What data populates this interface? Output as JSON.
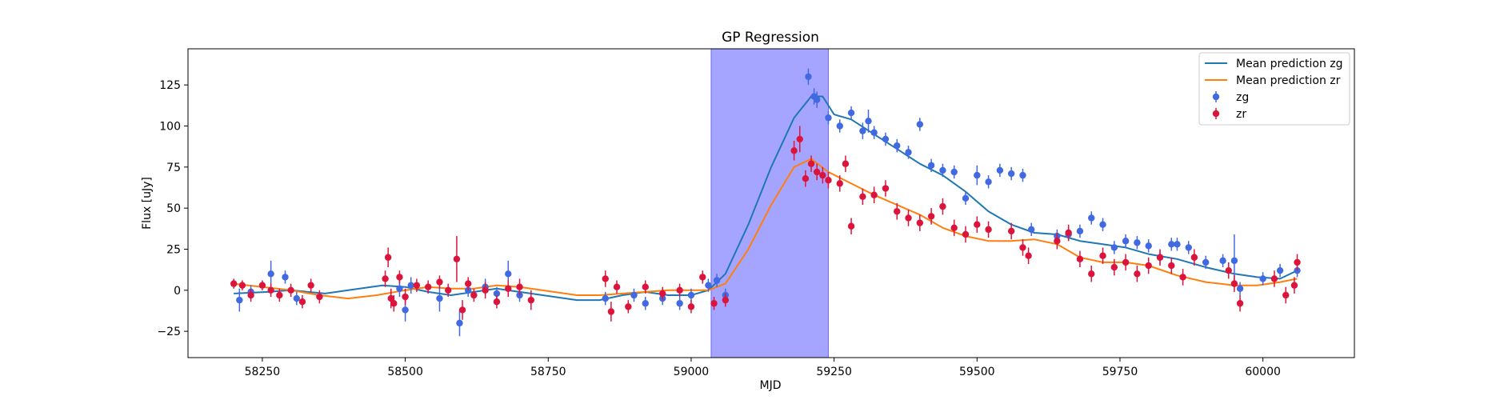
{
  "chart_data": {
    "type": "line",
    "title": "GP Regression",
    "xlabel": "MJD",
    "ylabel": "Flux [uJy]",
    "xlim": [
      58120,
      60160
    ],
    "ylim": [
      -41,
      147
    ],
    "xticks": [
      58250,
      58500,
      58750,
      59000,
      59250,
      59500,
      59750,
      60000
    ],
    "yticks": [
      -25,
      0,
      25,
      50,
      75,
      100,
      125
    ],
    "grid": false,
    "legend_position": "top-right",
    "shaded_span": {
      "x0": 59035,
      "x1": 59240,
      "color": "#a5a5ff",
      "edge_color": "#6b6bf5"
    },
    "colors": {
      "mean_zg": "#1f77b4",
      "mean_zr": "#ff7f0e",
      "zg": "#4169e1",
      "zr": "#dc143c"
    },
    "series": [
      {
        "name": "Mean prediction zg",
        "kind": "line",
        "color_key": "mean_zg",
        "points": [
          [
            58200,
            -2
          ],
          [
            58260,
            -1
          ],
          [
            58300,
            0
          ],
          [
            58360,
            -2
          ],
          [
            58420,
            1
          ],
          [
            58460,
            3
          ],
          [
            58500,
            2
          ],
          [
            58540,
            -1
          ],
          [
            58580,
            -3
          ],
          [
            58620,
            -1
          ],
          [
            58660,
            1
          ],
          [
            58700,
            -1
          ],
          [
            58760,
            -4
          ],
          [
            58800,
            -6
          ],
          [
            58840,
            -6
          ],
          [
            58880,
            -3
          ],
          [
            58920,
            -1
          ],
          [
            58960,
            -3
          ],
          [
            59000,
            -3
          ],
          [
            59030,
            0
          ],
          [
            59060,
            10
          ],
          [
            59100,
            40
          ],
          [
            59140,
            75
          ],
          [
            59180,
            105
          ],
          [
            59210,
            118
          ],
          [
            59230,
            118
          ],
          [
            59250,
            107
          ],
          [
            59280,
            104
          ],
          [
            59320,
            95
          ],
          [
            59360,
            86
          ],
          [
            59400,
            77
          ],
          [
            59440,
            70
          ],
          [
            59480,
            60
          ],
          [
            59520,
            48
          ],
          [
            59560,
            40
          ],
          [
            59600,
            35
          ],
          [
            59640,
            34
          ],
          [
            59680,
            30
          ],
          [
            59720,
            28
          ],
          [
            59760,
            26
          ],
          [
            59800,
            22
          ],
          [
            59850,
            19
          ],
          [
            59900,
            14
          ],
          [
            59950,
            10
          ],
          [
            59990,
            8
          ],
          [
            60030,
            7
          ],
          [
            60060,
            12
          ]
        ]
      },
      {
        "name": "Mean prediction zr",
        "kind": "line",
        "color_key": "mean_zr",
        "points": [
          [
            58200,
            4
          ],
          [
            58250,
            2
          ],
          [
            58300,
            0
          ],
          [
            58350,
            -3
          ],
          [
            58400,
            -5
          ],
          [
            58450,
            -3
          ],
          [
            58500,
            0
          ],
          [
            58540,
            2
          ],
          [
            58580,
            1
          ],
          [
            58620,
            1
          ],
          [
            58660,
            3
          ],
          [
            58700,
            2
          ],
          [
            58760,
            -1
          ],
          [
            58800,
            -3
          ],
          [
            58840,
            -3
          ],
          [
            58880,
            -2
          ],
          [
            58920,
            -1
          ],
          [
            58960,
            0
          ],
          [
            59000,
            0
          ],
          [
            59030,
            0
          ],
          [
            59060,
            4
          ],
          [
            59100,
            25
          ],
          [
            59140,
            52
          ],
          [
            59180,
            75
          ],
          [
            59210,
            80
          ],
          [
            59240,
            72
          ],
          [
            59280,
            65
          ],
          [
            59320,
            58
          ],
          [
            59360,
            52
          ],
          [
            59400,
            46
          ],
          [
            59440,
            38
          ],
          [
            59480,
            33
          ],
          [
            59520,
            30
          ],
          [
            59560,
            30
          ],
          [
            59600,
            31
          ],
          [
            59640,
            28
          ],
          [
            59680,
            20
          ],
          [
            59720,
            17
          ],
          [
            59760,
            17
          ],
          [
            59800,
            15
          ],
          [
            59850,
            9
          ],
          [
            59900,
            5
          ],
          [
            59950,
            3
          ],
          [
            59990,
            3
          ],
          [
            60030,
            5
          ],
          [
            60060,
            7
          ]
        ]
      },
      {
        "name": "zg",
        "kind": "errorbar",
        "color_key": "zg",
        "points": [
          [
            58210,
            -6,
            7
          ],
          [
            58230,
            -1,
            4
          ],
          [
            58265,
            10,
            8
          ],
          [
            58290,
            8,
            4
          ],
          [
            58310,
            -5,
            4
          ],
          [
            58490,
            1,
            5
          ],
          [
            58500,
            -12,
            7
          ],
          [
            58510,
            3,
            5
          ],
          [
            58560,
            -5,
            8
          ],
          [
            58595,
            -20,
            8
          ],
          [
            58610,
            0,
            4
          ],
          [
            58640,
            2,
            5
          ],
          [
            58660,
            -2,
            4
          ],
          [
            58680,
            10,
            8
          ],
          [
            58700,
            -3,
            4
          ],
          [
            58850,
            -5,
            4
          ],
          [
            58900,
            -3,
            4
          ],
          [
            58920,
            -8,
            4
          ],
          [
            58950,
            -5,
            4
          ],
          [
            58980,
            -8,
            4
          ],
          [
            59000,
            -3,
            4
          ],
          [
            59030,
            3,
            4
          ],
          [
            59045,
            6,
            4
          ],
          [
            59060,
            -3,
            4
          ],
          [
            59205,
            130,
            5
          ],
          [
            59215,
            118,
            5
          ],
          [
            59220,
            116,
            5
          ],
          [
            59240,
            105,
            4
          ],
          [
            59260,
            100,
            4
          ],
          [
            59280,
            108,
            4
          ],
          [
            59300,
            97,
            5
          ],
          [
            59310,
            103,
            7
          ],
          [
            59320,
            96,
            4
          ],
          [
            59340,
            92,
            4
          ],
          [
            59360,
            88,
            4
          ],
          [
            59380,
            84,
            4
          ],
          [
            59400,
            101,
            4
          ],
          [
            59420,
            76,
            4
          ],
          [
            59440,
            73,
            4
          ],
          [
            59460,
            72,
            4
          ],
          [
            59480,
            56,
            4
          ],
          [
            59500,
            70,
            6
          ],
          [
            59520,
            66,
            4
          ],
          [
            59540,
            73,
            4
          ],
          [
            59560,
            71,
            4
          ],
          [
            59580,
            70,
            4
          ],
          [
            59595,
            37,
            4
          ],
          [
            59640,
            33,
            4
          ],
          [
            59660,
            34,
            4
          ],
          [
            59680,
            36,
            4
          ],
          [
            59700,
            44,
            4
          ],
          [
            59720,
            40,
            4
          ],
          [
            59740,
            26,
            4
          ],
          [
            59760,
            30,
            4
          ],
          [
            59780,
            29,
            4
          ],
          [
            59800,
            27,
            4
          ],
          [
            59820,
            20,
            4
          ],
          [
            59840,
            28,
            4
          ],
          [
            59850,
            28,
            4
          ],
          [
            59870,
            26,
            4
          ],
          [
            59900,
            17,
            4
          ],
          [
            59930,
            18,
            4
          ],
          [
            59950,
            18,
            16
          ],
          [
            59960,
            1,
            4
          ],
          [
            60000,
            7,
            4
          ],
          [
            60030,
            12,
            4
          ],
          [
            60060,
            12,
            4
          ]
        ]
      },
      {
        "name": "zr",
        "kind": "errorbar",
        "color_key": "zr",
        "points": [
          [
            58200,
            4,
            3
          ],
          [
            58215,
            3,
            3
          ],
          [
            58230,
            -3,
            4
          ],
          [
            58250,
            3,
            3
          ],
          [
            58265,
            0,
            4
          ],
          [
            58280,
            -3,
            4
          ],
          [
            58300,
            0,
            4
          ],
          [
            58320,
            -7,
            4
          ],
          [
            58335,
            3,
            4
          ],
          [
            58350,
            -4,
            4
          ],
          [
            58465,
            7,
            5
          ],
          [
            58470,
            20,
            6
          ],
          [
            58475,
            -5,
            6
          ],
          [
            58480,
            -8,
            5
          ],
          [
            58490,
            8,
            4
          ],
          [
            58500,
            -4,
            5
          ],
          [
            58520,
            3,
            4
          ],
          [
            58540,
            2,
            4
          ],
          [
            58560,
            5,
            4
          ],
          [
            58575,
            0,
            4
          ],
          [
            58590,
            19,
            14
          ],
          [
            58600,
            -12,
            6
          ],
          [
            58610,
            4,
            4
          ],
          [
            58620,
            -3,
            4
          ],
          [
            58640,
            0,
            5
          ],
          [
            58660,
            -7,
            4
          ],
          [
            58680,
            1,
            5
          ],
          [
            58700,
            2,
            5
          ],
          [
            58720,
            -6,
            6
          ],
          [
            58850,
            7,
            5
          ],
          [
            58860,
            -13,
            6
          ],
          [
            58870,
            2,
            4
          ],
          [
            58890,
            -10,
            4
          ],
          [
            58920,
            2,
            4
          ],
          [
            58950,
            -2,
            4
          ],
          [
            58980,
            0,
            4
          ],
          [
            59000,
            -10,
            4
          ],
          [
            59020,
            8,
            4
          ],
          [
            59040,
            -8,
            4
          ],
          [
            59060,
            -6,
            4
          ],
          [
            59180,
            85,
            6
          ],
          [
            59190,
            92,
            8
          ],
          [
            59200,
            68,
            5
          ],
          [
            59210,
            77,
            5
          ],
          [
            59220,
            72,
            5
          ],
          [
            59230,
            70,
            5
          ],
          [
            59240,
            67,
            5
          ],
          [
            59260,
            65,
            5
          ],
          [
            59270,
            77,
            5
          ],
          [
            59280,
            39,
            5
          ],
          [
            59300,
            57,
            5
          ],
          [
            59320,
            58,
            5
          ],
          [
            59340,
            62,
            5
          ],
          [
            59360,
            48,
            5
          ],
          [
            59380,
            44,
            5
          ],
          [
            59400,
            41,
            5
          ],
          [
            59420,
            45,
            5
          ],
          [
            59440,
            51,
            5
          ],
          [
            59460,
            38,
            5
          ],
          [
            59480,
            34,
            5
          ],
          [
            59500,
            40,
            5
          ],
          [
            59520,
            37,
            5
          ],
          [
            59560,
            36,
            5
          ],
          [
            59580,
            26,
            5
          ],
          [
            59590,
            21,
            5
          ],
          [
            59640,
            30,
            5
          ],
          [
            59660,
            35,
            5
          ],
          [
            59680,
            19,
            5
          ],
          [
            59700,
            10,
            5
          ],
          [
            59720,
            21,
            5
          ],
          [
            59740,
            14,
            5
          ],
          [
            59760,
            17,
            5
          ],
          [
            59780,
            10,
            5
          ],
          [
            59800,
            15,
            5
          ],
          [
            59820,
            20,
            5
          ],
          [
            59840,
            15,
            5
          ],
          [
            59860,
            8,
            5
          ],
          [
            59880,
            20,
            5
          ],
          [
            59940,
            12,
            5
          ],
          [
            59950,
            4,
            5
          ],
          [
            59960,
            -8,
            5
          ],
          [
            60020,
            7,
            5
          ],
          [
            60040,
            -3,
            5
          ],
          [
            60055,
            3,
            5
          ],
          [
            60060,
            17,
            5
          ]
        ]
      }
    ]
  }
}
